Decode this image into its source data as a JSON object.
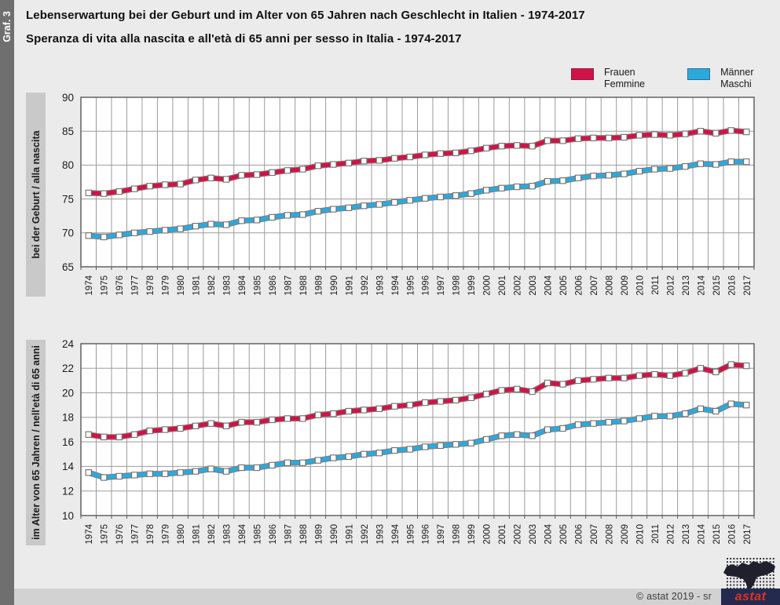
{
  "page": {
    "graf_label": "Graf. 3",
    "title_de": "Lebenserwartung bei der Geburt und im Alter von 65 Jahren nach Geschlecht in Italien - 1974-2017",
    "title_it": "Speranza di vita alla nascita e all'età di 65 anni per sesso in Italia - 1974-2017"
  },
  "legend": {
    "position": "top-right",
    "female": {
      "label_de": "Frauen",
      "label_it": "Femmine",
      "color": "#cf1349"
    },
    "male": {
      "label_de": "Männer",
      "label_it": "Maschi",
      "color": "#2aa9df"
    }
  },
  "chart_data": [
    {
      "type": "line",
      "title": "bei der Geburt / alla nascita",
      "xlabel": "",
      "ylabel": "bei der Geburt / alla nascita",
      "ylim": [
        65,
        90
      ],
      "ytick_step": 5,
      "grid": true,
      "marker": "white-square",
      "x": [
        1974,
        1975,
        1976,
        1977,
        1978,
        1979,
        1980,
        1981,
        1982,
        1983,
        1984,
        1985,
        1986,
        1987,
        1988,
        1989,
        1990,
        1991,
        1992,
        1993,
        1994,
        1995,
        1996,
        1997,
        1998,
        1999,
        2000,
        2001,
        2002,
        2003,
        2004,
        2005,
        2006,
        2007,
        2008,
        2009,
        2010,
        2011,
        2012,
        2013,
        2014,
        2015,
        2016,
        2017
      ],
      "series": [
        {
          "name": "Frauen / Femmine",
          "color": "#cf1349",
          "values": [
            75.9,
            75.8,
            76.1,
            76.5,
            76.9,
            77.1,
            77.2,
            77.8,
            78.1,
            77.9,
            78.5,
            78.6,
            78.9,
            79.2,
            79.4,
            79.9,
            80.1,
            80.3,
            80.6,
            80.7,
            81.0,
            81.2,
            81.5,
            81.7,
            81.8,
            82.1,
            82.5,
            82.8,
            82.9,
            82.8,
            83.6,
            83.6,
            83.9,
            84.0,
            84.0,
            84.1,
            84.4,
            84.5,
            84.4,
            84.6,
            85.0,
            84.7,
            85.1,
            84.9
          ]
        },
        {
          "name": "Männer / Maschi",
          "color": "#2aa9df",
          "values": [
            69.6,
            69.4,
            69.7,
            70.0,
            70.2,
            70.4,
            70.6,
            71.0,
            71.3,
            71.2,
            71.8,
            71.9,
            72.3,
            72.6,
            72.7,
            73.2,
            73.5,
            73.7,
            74.0,
            74.2,
            74.5,
            74.8,
            75.1,
            75.3,
            75.5,
            75.8,
            76.3,
            76.6,
            76.8,
            76.9,
            77.6,
            77.7,
            78.1,
            78.4,
            78.5,
            78.7,
            79.1,
            79.4,
            79.5,
            79.8,
            80.2,
            80.1,
            80.5,
            80.5
          ]
        }
      ]
    },
    {
      "type": "line",
      "title": "im Alter von 65 Jahren / nell'età di 65 anni",
      "xlabel": "",
      "ylabel": "im Alter von 65 Jahren / nell'età di 65 anni",
      "ylim": [
        10,
        24
      ],
      "ytick_step": 2,
      "grid": true,
      "marker": "white-square",
      "x": [
        1974,
        1975,
        1976,
        1977,
        1978,
        1979,
        1980,
        1981,
        1982,
        1983,
        1984,
        1985,
        1986,
        1987,
        1988,
        1989,
        1990,
        1991,
        1992,
        1993,
        1994,
        1995,
        1996,
        1997,
        1998,
        1999,
        2000,
        2001,
        2002,
        2003,
        2004,
        2005,
        2006,
        2007,
        2008,
        2009,
        2010,
        2011,
        2012,
        2013,
        2014,
        2015,
        2016,
        2017
      ],
      "series": [
        {
          "name": "Frauen / Femmine",
          "color": "#cf1349",
          "values": [
            16.6,
            16.4,
            16.4,
            16.6,
            16.9,
            17.0,
            17.1,
            17.3,
            17.5,
            17.3,
            17.6,
            17.6,
            17.8,
            17.9,
            17.9,
            18.2,
            18.3,
            18.5,
            18.6,
            18.7,
            18.9,
            19.0,
            19.2,
            19.3,
            19.4,
            19.6,
            19.9,
            20.2,
            20.3,
            20.1,
            20.8,
            20.7,
            21.0,
            21.1,
            21.2,
            21.2,
            21.4,
            21.5,
            21.4,
            21.6,
            22.0,
            21.7,
            22.3,
            22.2
          ]
        },
        {
          "name": "Männer / Maschi",
          "color": "#2aa9df",
          "values": [
            13.5,
            13.1,
            13.2,
            13.3,
            13.4,
            13.4,
            13.5,
            13.6,
            13.8,
            13.6,
            13.9,
            13.9,
            14.1,
            14.3,
            14.3,
            14.5,
            14.7,
            14.8,
            15.0,
            15.1,
            15.3,
            15.4,
            15.6,
            15.7,
            15.8,
            15.9,
            16.2,
            16.5,
            16.6,
            16.5,
            17.0,
            17.1,
            17.4,
            17.5,
            17.6,
            17.7,
            17.9,
            18.1,
            18.1,
            18.3,
            18.7,
            18.5,
            19.1,
            19.0
          ]
        }
      ]
    }
  ],
  "footer": {
    "copyright": "© astat 2019 - sr",
    "logo_text": "astat"
  }
}
